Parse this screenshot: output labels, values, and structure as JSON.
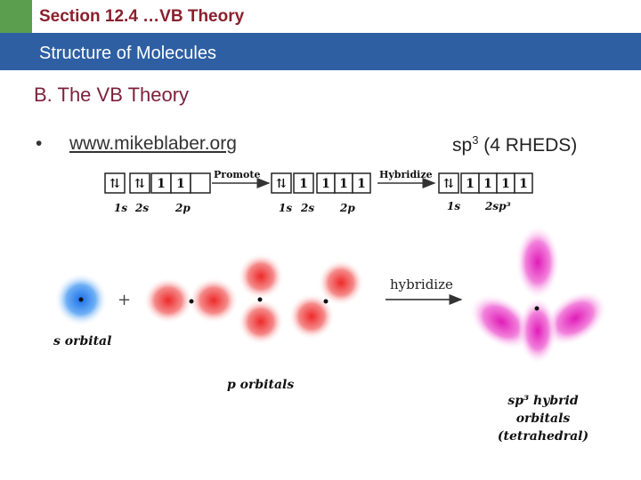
{
  "header": {
    "section_title": "Section 12.4 …VB Theory",
    "subtitle": "Structure of Molecules",
    "accent_green": "#5a9e4e",
    "bar_blue": "#2e5fa3"
  },
  "content": {
    "heading": "B. The VB Theory",
    "bullet": "•",
    "link_text": "www.mikeblaber.org",
    "sp3_base": "sp",
    "sp3_sup": "3",
    "sp3_suffix": " (4 RHEDS)"
  },
  "orbital_boxes": {
    "group1": {
      "cells": [
        "⇅",
        "⇅",
        "1",
        "1",
        ""
      ],
      "labels": [
        "1s",
        "2s",
        "2p"
      ]
    },
    "promote_label": "Promote",
    "group2": {
      "cells": [
        "⇅",
        "1",
        "1",
        "1",
        "1"
      ],
      "labels": [
        "1s",
        "2s",
        "2p"
      ]
    },
    "hybridize_label": "Hybridize",
    "group3": {
      "cells": [
        "⇅",
        "1",
        "1",
        "1",
        "1"
      ],
      "labels": [
        "1s",
        "2sp³"
      ]
    }
  },
  "orbital_diagram": {
    "plus": "+",
    "s_label": "s orbital",
    "p_label": "p orbitals",
    "arrow_label": "hybridize",
    "hybrid_label_line1": "sp³ hybrid",
    "hybrid_label_line2": "orbitals",
    "hybrid_label_line3": "(tetrahedral)",
    "colors": {
      "s": "#3a8ef0",
      "p": "#f04a4a",
      "hybrid": "#e83cc8"
    }
  }
}
